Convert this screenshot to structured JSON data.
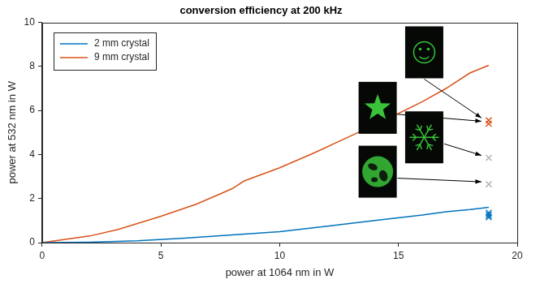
{
  "chart_data": {
    "type": "line",
    "title": "conversion efficiency at 200 kHz",
    "x_label": "power at 1064 nm in W",
    "y_label": "power at 532 nm in W",
    "xlim": [
      0,
      20
    ],
    "xticks": [
      0,
      5,
      10,
      15,
      20
    ],
    "ylim": [
      0,
      10
    ],
    "yticks": [
      0,
      2,
      4,
      6,
      8,
      10
    ],
    "grid": false,
    "legend": "northwest",
    "series": [
      {
        "name": "2 mm crystal",
        "color": "#0072bd",
        "type": "line",
        "line_style": "solid",
        "x": [
          0,
          2,
          4,
          6,
          8,
          10,
          12,
          14,
          16,
          17,
          18,
          18.8
        ],
        "values": [
          0,
          0.02,
          0.08,
          0.2,
          0.35,
          0.5,
          0.75,
          1.0,
          1.25,
          1.4,
          1.5,
          1.6
        ]
      },
      {
        "name": "9 mm crystal",
        "color": "#d95319",
        "type": "line",
        "line_style": "solid",
        "x": [
          0,
          2,
          3.2,
          5,
          6.5,
          8,
          8.5,
          10,
          11.5,
          13,
          14.5,
          16,
          17,
          18,
          18.8
        ],
        "values": [
          0,
          0.3,
          0.6,
          1.2,
          1.75,
          2.45,
          2.8,
          3.4,
          4.1,
          4.85,
          5.6,
          6.4,
          7.0,
          7.7,
          8.05
        ]
      },
      {
        "color": "#d95319",
        "type": "scatter",
        "marker": "x",
        "x": [
          18.8,
          18.8
        ],
        "values": [
          5.55,
          5.4
        ]
      },
      {
        "color": "#b4b4b4",
        "type": "scatter",
        "marker": "x",
        "x": [
          18.8,
          18.8
        ],
        "values": [
          3.85,
          2.65
        ]
      },
      {
        "color": "#0072bd",
        "type": "scatter",
        "marker": "x",
        "x": [
          18.8,
          18.8,
          18.8
        ],
        "values": [
          1.35,
          1.25,
          1.15
        ]
      }
    ]
  }
}
